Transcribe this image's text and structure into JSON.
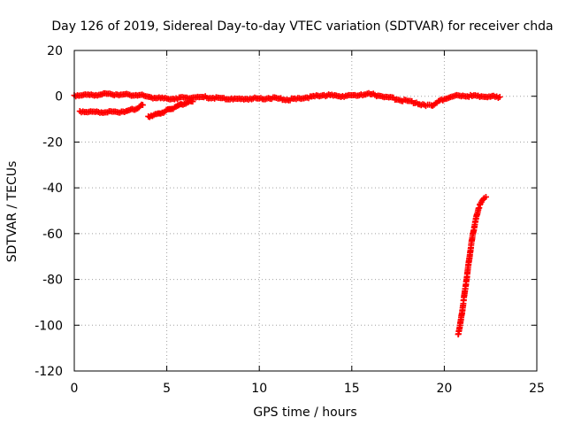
{
  "chart_data": {
    "type": "scatter",
    "title": "Day 126 of 2019, Sidereal Day-to-day VTEC variation (SDTVAR) for receiver chda",
    "xlabel": "GPS time / hours",
    "ylabel": "SDTVAR / TECUs",
    "xlim": [
      0,
      25
    ],
    "ylim": [
      -120,
      20
    ],
    "x_ticks": [
      "0",
      "5",
      "10",
      "15",
      "20",
      "25"
    ],
    "y_ticks": [
      "20",
      "0",
      "-20",
      "-40",
      "-60",
      "-80",
      "-100",
      "-120"
    ],
    "grid": true,
    "marker": "plus",
    "color": "#ff0000",
    "series": [
      {
        "points": [
          [
            0.0,
            0.4
          ],
          [
            0.5,
            0.6
          ],
          [
            1.0,
            0.5
          ],
          [
            1.5,
            0.8
          ],
          [
            2.0,
            0.9
          ],
          [
            2.5,
            0.7
          ],
          [
            3.0,
            0.6
          ],
          [
            3.5,
            0.5
          ],
          [
            4.0,
            -0.2
          ],
          [
            4.5,
            -0.8
          ],
          [
            5.0,
            -1.0
          ],
          [
            5.5,
            -0.9
          ],
          [
            6.0,
            -0.6
          ],
          [
            6.5,
            -0.5
          ],
          [
            7.0,
            -0.4
          ],
          [
            7.5,
            -0.7
          ],
          [
            8.0,
            -0.8
          ],
          [
            8.5,
            -1.0
          ],
          [
            9.0,
            -1.2
          ],
          [
            9.5,
            -1.0
          ],
          [
            10.0,
            -1.0
          ],
          [
            10.5,
            -0.8
          ],
          [
            11.0,
            -1.0
          ],
          [
            11.5,
            -1.5
          ],
          [
            12.0,
            -1.2
          ],
          [
            12.5,
            -0.6
          ],
          [
            13.0,
            0.0
          ],
          [
            13.5,
            0.5
          ],
          [
            14.0,
            0.3
          ],
          [
            14.5,
            0.1
          ],
          [
            15.0,
            0.4
          ],
          [
            15.5,
            0.8
          ],
          [
            16.0,
            0.9
          ],
          [
            16.5,
            0.2
          ],
          [
            17.0,
            -0.5
          ],
          [
            17.5,
            -1.5
          ],
          [
            18.0,
            -2.0
          ],
          [
            18.5,
            -2.8
          ],
          [
            19.0,
            -4.2
          ],
          [
            19.3,
            -4.0
          ],
          [
            19.6,
            -2.8
          ],
          [
            20.0,
            -1.2
          ],
          [
            20.5,
            0.0
          ],
          [
            21.0,
            0.3
          ],
          [
            21.5,
            0.1
          ],
          [
            22.0,
            0.0
          ],
          [
            22.5,
            -0.2
          ],
          [
            23.0,
            -0.3
          ]
        ]
      },
      {
        "points": [
          [
            0.3,
            -6.5
          ],
          [
            0.8,
            -6.8
          ],
          [
            1.3,
            -6.9
          ],
          [
            1.8,
            -7.0
          ],
          [
            2.3,
            -6.9
          ],
          [
            2.8,
            -6.5
          ],
          [
            3.2,
            -5.8
          ],
          [
            3.5,
            -4.8
          ],
          [
            3.7,
            -3.8
          ]
        ]
      },
      {
        "points": [
          [
            4.0,
            -8.8
          ],
          [
            4.3,
            -8.2
          ],
          [
            4.6,
            -7.5
          ],
          [
            4.9,
            -6.7
          ],
          [
            5.2,
            -5.6
          ],
          [
            5.5,
            -4.5
          ],
          [
            5.8,
            -3.5
          ],
          [
            6.1,
            -2.8
          ],
          [
            6.4,
            -2.3
          ]
        ]
      },
      {
        "points": [
          [
            20.75,
            -104
          ],
          [
            20.85,
            -100
          ],
          [
            20.95,
            -95
          ],
          [
            21.05,
            -89
          ],
          [
            21.15,
            -83
          ],
          [
            21.25,
            -77
          ],
          [
            21.35,
            -71
          ],
          [
            21.45,
            -65
          ],
          [
            21.55,
            -60
          ],
          [
            21.65,
            -56
          ],
          [
            21.75,
            -52
          ],
          [
            21.85,
            -49
          ],
          [
            21.95,
            -47
          ],
          [
            22.05,
            -45.5
          ],
          [
            22.15,
            -44.5
          ],
          [
            22.25,
            -44
          ]
        ]
      }
    ]
  }
}
